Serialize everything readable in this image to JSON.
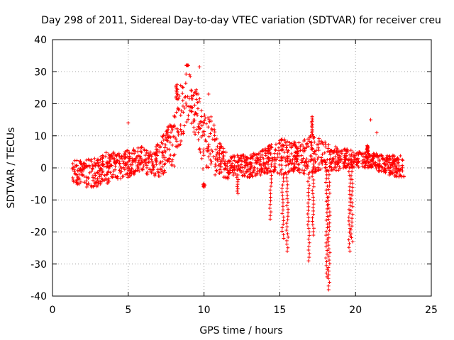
{
  "chart_data": {
    "type": "scatter",
    "title": "Day 298 of 2011, Sidereal Day-to-day VTEC variation (SDTVAR) for receiver creu",
    "xlabel": "GPS time / hours",
    "ylabel": "SDTVAR / TECUs",
    "xlim": [
      0,
      25
    ],
    "ylim": [
      -40,
      40
    ],
    "xticks": [
      "0",
      "5",
      "10",
      "15",
      "20",
      "25"
    ],
    "yticks": [
      "40",
      "30",
      "20",
      "10",
      "0",
      "-10",
      "-20",
      "-30",
      "-40"
    ],
    "grid": true,
    "marker": "+",
    "color": "#ff0000",
    "series": [
      {
        "name": "SDTVAR",
        "envelope": {
          "x": [
            1.3,
            1.5,
            2.0,
            2.5,
            3.0,
            3.5,
            4.0,
            5.0,
            5.5,
            6.0,
            6.5,
            7.0,
            7.5,
            8.0,
            8.3,
            8.6,
            8.9,
            9.2,
            9.6,
            10.0,
            10.5,
            11.0,
            11.5,
            12.0,
            13.0,
            14.0,
            14.5,
            15.0,
            15.5,
            16.0,
            16.5,
            17.0,
            17.5,
            18.0,
            18.5,
            19.0,
            19.5,
            20.0,
            21.0,
            22.0,
            23.0,
            23.2
          ],
          "upper": [
            4,
            5,
            2,
            3,
            3.5,
            5,
            5,
            5.5,
            6,
            7,
            5,
            8,
            12,
            16,
            24,
            28,
            32,
            27,
            24,
            18,
            17,
            8,
            5,
            4,
            4,
            6,
            8,
            9,
            9,
            8,
            9,
            10,
            10,
            8,
            7,
            6,
            6,
            5,
            5,
            4,
            4,
            4
          ],
          "lower": [
            -4,
            -5,
            -7,
            -6,
            -6,
            -5,
            -4,
            -3,
            -2,
            -2,
            -2,
            -4,
            -2,
            0,
            5,
            10,
            15,
            12,
            8,
            -5,
            -3,
            -2,
            -4,
            -2,
            -3,
            -2,
            -1,
            -2,
            -2,
            -1,
            -2,
            -2,
            -1,
            -1,
            -1,
            -1,
            0,
            0,
            0,
            -2,
            -3,
            -4
          ]
        },
        "spikes": [
          {
            "x": 10.0,
            "min": -6
          },
          {
            "x": 12.2,
            "min": -8
          },
          {
            "x": 14.4,
            "min": -16
          },
          {
            "x": 15.2,
            "min": -22
          },
          {
            "x": 15.5,
            "min": -26
          },
          {
            "x": 16.9,
            "min": -29
          },
          {
            "x": 17.2,
            "min": -21
          },
          {
            "x": 18.1,
            "min": -34
          },
          {
            "x": 18.25,
            "min": -38
          },
          {
            "x": 19.6,
            "min": -26
          },
          {
            "x": 19.75,
            "min": -23
          }
        ],
        "upper_spikes": [
          {
            "x": 8.2,
            "max": 26
          },
          {
            "x": 8.9,
            "max": 32
          },
          {
            "x": 17.1,
            "max": 16
          },
          {
            "x": 20.8,
            "max": 7
          }
        ],
        "outliers": [
          {
            "x": 5.0,
            "y": 14
          },
          {
            "x": 9.7,
            "y": 31.5
          },
          {
            "x": 10.3,
            "y": 23
          },
          {
            "x": 21.0,
            "y": 15
          },
          {
            "x": 21.4,
            "y": 11
          }
        ]
      }
    ]
  }
}
